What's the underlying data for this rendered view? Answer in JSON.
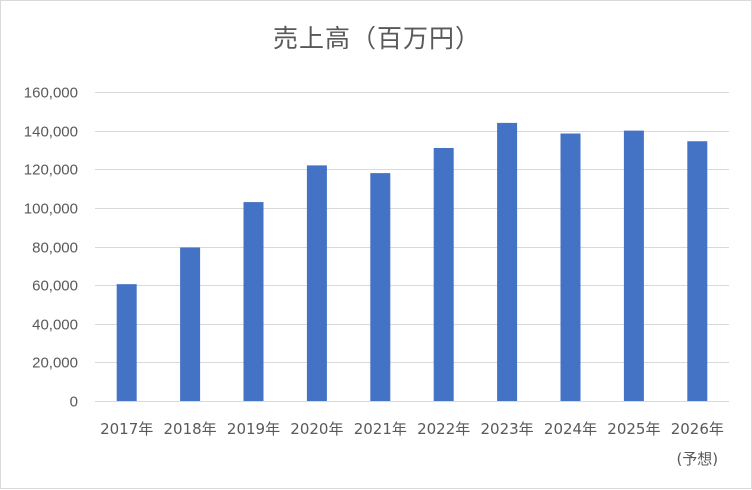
{
  "chart_data": {
    "type": "bar",
    "title": "売上高（百万円）",
    "categories": [
      "2017年",
      "2018年",
      "2019年",
      "2020年",
      "2021年",
      "2022年",
      "2023年",
      "2024年",
      "2025年",
      "2026年"
    ],
    "category_notes": [
      "",
      "",
      "",
      "",
      "",
      "",
      "",
      "",
      "",
      "(予想)"
    ],
    "values": [
      60500,
      79500,
      103000,
      122000,
      118000,
      131000,
      144000,
      138500,
      140000,
      134500
    ],
    "ylim": [
      0,
      160000
    ],
    "yticks": [
      0,
      20000,
      40000,
      60000,
      80000,
      100000,
      120000,
      140000,
      160000
    ],
    "ytick_labels": [
      "0",
      "20,000",
      "40,000",
      "60,000",
      "80,000",
      "100,000",
      "120,000",
      "140,000",
      "160,000"
    ],
    "xlabel": "",
    "ylabel": "",
    "grid": true,
    "legend": "none",
    "bar_color": "#4472c4",
    "grid_color": "#d9d9d9"
  }
}
